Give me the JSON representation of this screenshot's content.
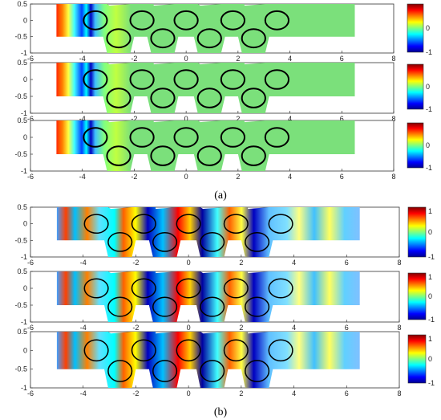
{
  "captions": {
    "a": "(a)",
    "b": "(b)"
  },
  "chart_data": [
    {
      "type": "heatmap",
      "panel": "a",
      "subplots": 3,
      "x_range": [
        -6,
        8
      ],
      "y_range": [
        -1,
        0.5
      ],
      "x_ticks": [
        "-6",
        "-4",
        "-2",
        "0",
        "2",
        "4",
        "6",
        "8"
      ],
      "y_ticks": [
        "0.5",
        "0",
        "-0.5",
        "-1"
      ],
      "colorbar": {
        "min": -1,
        "max": 1,
        "ticks_shown": [
          "0",
          "-1"
        ],
        "colormap": "jet"
      },
      "field_x_range": [
        -5,
        6.5
      ],
      "field_y_range": [
        -0.5,
        0.5
      ],
      "field_description": "strong gradient near x=-4.5, uniform near zero elsewhere",
      "circles": [
        {
          "x": -3.5,
          "y": 0.0
        },
        {
          "x": -2.6,
          "y": -0.5
        },
        {
          "x": -1.7,
          "y": 0.0
        },
        {
          "x": -0.9,
          "y": -0.5
        },
        {
          "x": 0.0,
          "y": 0.0
        },
        {
          "x": 0.9,
          "y": -0.5
        },
        {
          "x": 1.8,
          "y": 0.0
        },
        {
          "x": 2.6,
          "y": -0.5
        },
        {
          "x": 3.5,
          "y": 0.0
        }
      ]
    },
    {
      "type": "heatmap",
      "panel": "b",
      "subplots": 3,
      "x_range": [
        -6,
        8
      ],
      "y_range": [
        -1,
        0.5
      ],
      "x_ticks": [
        "-6",
        "-4",
        "-2",
        "0",
        "2",
        "4",
        "6",
        "8"
      ],
      "y_ticks": [
        "0.5",
        "0",
        "-0.5",
        "-1"
      ],
      "colorbar": {
        "min": -1,
        "max": 1,
        "ticks_shown": [
          "1",
          "0",
          "-1"
        ],
        "colormap": "jet"
      },
      "field_x_range": [
        -5,
        6.5
      ],
      "field_y_range": [
        -0.5,
        0.5
      ],
      "field_description": "oscillating wave pattern, alternating positive/negative lobes",
      "circles": [
        {
          "x": -3.5,
          "y": 0.0
        },
        {
          "x": -2.6,
          "y": -0.5
        },
        {
          "x": -1.7,
          "y": 0.0
        },
        {
          "x": -0.9,
          "y": -0.5
        },
        {
          "x": 0.0,
          "y": 0.0
        },
        {
          "x": 0.9,
          "y": -0.5
        },
        {
          "x": 1.8,
          "y": 0.0
        },
        {
          "x": 2.6,
          "y": -0.5
        },
        {
          "x": 3.5,
          "y": 0.0
        }
      ]
    }
  ],
  "colors": {
    "jet": [
      "#00008f",
      "#0000ff",
      "#0080ff",
      "#00ffff",
      "#80ff80",
      "#ffff00",
      "#ff8000",
      "#ff0000",
      "#800000"
    ],
    "field_green": "#7be07b",
    "axis": "#222222"
  }
}
